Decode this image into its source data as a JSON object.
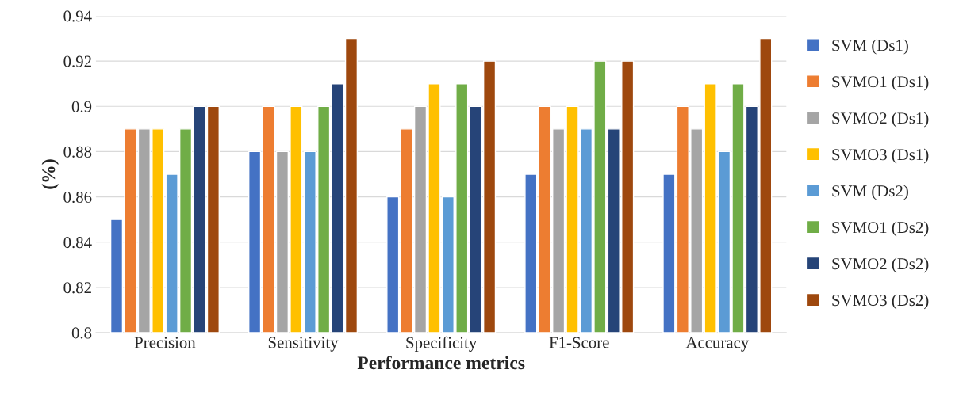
{
  "chart_data": {
    "type": "bar",
    "xlabel": "Performance metrics",
    "ylabel": "(%)",
    "categories": [
      "Precision",
      "Sensitivity",
      "Specificity",
      "F1-Score",
      "Accuracy"
    ],
    "series": [
      {
        "name": "SVM (Ds1)",
        "color": "#4472c4",
        "values": [
          0.85,
          0.88,
          0.86,
          0.87,
          0.87
        ]
      },
      {
        "name": "SVMO1 (Ds1)",
        "color": "#ed7d31",
        "values": [
          0.89,
          0.9,
          0.89,
          0.9,
          0.9
        ]
      },
      {
        "name": "SVMO2 (Ds1)",
        "color": "#a5a5a5",
        "values": [
          0.89,
          0.88,
          0.9,
          0.89,
          0.89
        ]
      },
      {
        "name": "SVMO3 (Ds1)",
        "color": "#ffc000",
        "values": [
          0.89,
          0.9,
          0.91,
          0.9,
          0.91
        ]
      },
      {
        "name": "SVM (Ds2)",
        "color": "#5b9bd5",
        "values": [
          0.87,
          0.88,
          0.86,
          0.89,
          0.88
        ]
      },
      {
        "name": "SVMO1 (Ds2)",
        "color": "#70ad47",
        "values": [
          0.89,
          0.9,
          0.91,
          0.92,
          0.91
        ]
      },
      {
        "name": "SVMO2 (Ds2)",
        "color": "#264478",
        "values": [
          0.9,
          0.91,
          0.9,
          0.89,
          0.9
        ]
      },
      {
        "name": "SVMO3 (Ds2)",
        "color": "#9e480e",
        "values": [
          0.9,
          0.93,
          0.92,
          0.92,
          0.93
        ]
      }
    ],
    "ylim": [
      0.8,
      0.94
    ],
    "yticks": [
      0.8,
      0.82,
      0.84,
      0.86,
      0.88,
      0.9,
      0.92,
      0.94
    ],
    "grid": "y",
    "legend": "right"
  }
}
